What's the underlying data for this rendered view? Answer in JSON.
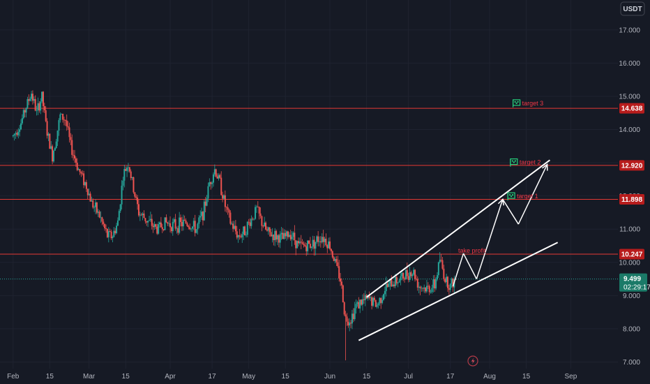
{
  "currency_button": "USDT",
  "colors": {
    "background": "#161a25",
    "grid": "#1f2330",
    "up": "#26a69a",
    "down": "#ef5350",
    "level": "#e53935",
    "badge": "#b71c1c",
    "current": "#1b7a68",
    "annotation": "#ffffff",
    "target_text": "#f23645",
    "flag": "#26d07c"
  },
  "chart_data": {
    "type": "candlestick",
    "y_axis": {
      "ticks": [
        "7.000",
        "8.000",
        "9.000",
        "10.000",
        "11.000",
        "12.000",
        "13.000",
        "14.000",
        "15.000",
        "16.000",
        "17.000"
      ],
      "ylim": [
        6.8,
        17.9
      ]
    },
    "x_axis": {
      "ticks": [
        "Feb",
        "15",
        "Mar",
        "15",
        "Apr",
        "17",
        "May",
        "15",
        "Jun",
        "15",
        "Jul",
        "17",
        "Aug",
        "15",
        "Sep"
      ],
      "tick_days": [
        0,
        14,
        29,
        43,
        60,
        76,
        90,
        104,
        121,
        135,
        151,
        167,
        182,
        196,
        213
      ],
      "xlim": [
        -5,
        231
      ]
    },
    "grid": true,
    "levels": [
      {
        "price": 14.638,
        "label": "14.638"
      },
      {
        "price": 12.92,
        "label": "12.920"
      },
      {
        "price": 11.898,
        "label": "11.898"
      },
      {
        "price": 10.247,
        "label": "10.247"
      }
    ],
    "current_price": {
      "value": "9.499",
      "countdown": "02:29:17",
      "price": 9.499
    },
    "annotations": [
      {
        "text": "take profit",
        "day": 170,
        "price": 10.33
      },
      {
        "text": "target 1",
        "day": 190,
        "price": 11.97,
        "flag": true
      },
      {
        "text": "target 2",
        "day": 191,
        "price": 12.99,
        "flag": true
      },
      {
        "text": "target 3",
        "day": 192,
        "price": 14.77,
        "flag": true
      }
    ],
    "channel_lines": [
      {
        "from": {
          "day": 132,
          "price": 7.65
        },
        "to": {
          "day": 208,
          "price": 10.6
        }
      },
      {
        "from": {
          "day": 135,
          "price": 8.95
        },
        "to": {
          "day": 205,
          "price": 13.08
        }
      }
    ],
    "projection_path": [
      {
        "day": 168,
        "price": 9.28
      },
      {
        "day": 172,
        "price": 10.27
      },
      {
        "day": 177,
        "price": 9.5
      },
      {
        "day": 187,
        "price": 11.9
      },
      {
        "day": 193,
        "price": 11.15
      },
      {
        "day": 204,
        "price": 12.95
      }
    ],
    "price_anchors": [
      {
        "day": 0,
        "price": 13.8
      },
      {
        "day": 3,
        "price": 14.2
      },
      {
        "day": 5,
        "price": 14.7
      },
      {
        "day": 7,
        "price": 15.1
      },
      {
        "day": 9,
        "price": 14.5
      },
      {
        "day": 11,
        "price": 15.0
      },
      {
        "day": 13,
        "price": 13.9
      },
      {
        "day": 15,
        "price": 13.2
      },
      {
        "day": 18,
        "price": 14.4
      },
      {
        "day": 20,
        "price": 14.3
      },
      {
        "day": 22,
        "price": 13.5
      },
      {
        "day": 25,
        "price": 12.8
      },
      {
        "day": 28,
        "price": 12.3
      },
      {
        "day": 30,
        "price": 11.8
      },
      {
        "day": 33,
        "price": 11.4
      },
      {
        "day": 36,
        "price": 10.8
      },
      {
        "day": 38,
        "price": 10.8
      },
      {
        "day": 40,
        "price": 11.2
      },
      {
        "day": 42,
        "price": 12.6
      },
      {
        "day": 44,
        "price": 13.0
      },
      {
        "day": 46,
        "price": 12.2
      },
      {
        "day": 48,
        "price": 11.5
      },
      {
        "day": 52,
        "price": 11.2
      },
      {
        "day": 55,
        "price": 11.0
      },
      {
        "day": 58,
        "price": 11.2
      },
      {
        "day": 62,
        "price": 11.1
      },
      {
        "day": 66,
        "price": 11.2
      },
      {
        "day": 70,
        "price": 11.0
      },
      {
        "day": 73,
        "price": 11.6
      },
      {
        "day": 75,
        "price": 12.4
      },
      {
        "day": 77,
        "price": 12.8
      },
      {
        "day": 79,
        "price": 12.4
      },
      {
        "day": 81,
        "price": 11.7
      },
      {
        "day": 83,
        "price": 11.2
      },
      {
        "day": 86,
        "price": 10.8
      },
      {
        "day": 88,
        "price": 10.9
      },
      {
        "day": 91,
        "price": 11.3
      },
      {
        "day": 93,
        "price": 11.6
      },
      {
        "day": 95,
        "price": 11.2
      },
      {
        "day": 97,
        "price": 10.9
      },
      {
        "day": 100,
        "price": 10.8
      },
      {
        "day": 103,
        "price": 10.7
      },
      {
        "day": 106,
        "price": 10.9
      },
      {
        "day": 109,
        "price": 10.5
      },
      {
        "day": 112,
        "price": 10.5
      },
      {
        "day": 115,
        "price": 10.6
      },
      {
        "day": 118,
        "price": 10.8
      },
      {
        "day": 121,
        "price": 10.5
      },
      {
        "day": 123,
        "price": 10.0
      },
      {
        "day": 125,
        "price": 9.5
      },
      {
        "day": 127,
        "price": 8.3
      },
      {
        "day": 129,
        "price": 8.3
      },
      {
        "day": 131,
        "price": 8.7
      },
      {
        "day": 133,
        "price": 8.8
      },
      {
        "day": 136,
        "price": 8.9
      },
      {
        "day": 139,
        "price": 8.7
      },
      {
        "day": 142,
        "price": 9.2
      },
      {
        "day": 145,
        "price": 9.4
      },
      {
        "day": 148,
        "price": 9.5
      },
      {
        "day": 151,
        "price": 9.7
      },
      {
        "day": 153,
        "price": 9.7
      },
      {
        "day": 155,
        "price": 9.3
      },
      {
        "day": 158,
        "price": 9.2
      },
      {
        "day": 161,
        "price": 9.3
      },
      {
        "day": 163,
        "price": 10.1
      },
      {
        "day": 165,
        "price": 9.5
      },
      {
        "day": 167,
        "price": 9.3
      },
      {
        "day": 169,
        "price": 9.499
      }
    ],
    "last_day": 169
  },
  "footer_icon": "lightning-icon"
}
